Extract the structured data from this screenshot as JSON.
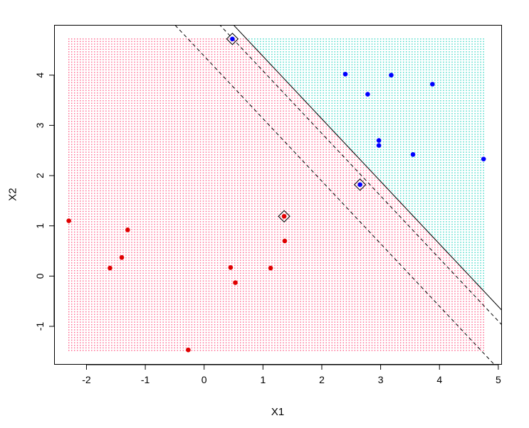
{
  "chart_data": {
    "type": "scatter",
    "title": "",
    "xlabel": "X1",
    "ylabel": "X2",
    "xlim": [
      -2.55,
      5.05
    ],
    "ylim": [
      -1.75,
      5.0
    ],
    "x_ticks": [
      -2,
      -1,
      0,
      1,
      2,
      3,
      4,
      5
    ],
    "y_ticks": [
      -1,
      0,
      1,
      2,
      3,
      4
    ],
    "grid_range": {
      "x": [
        -2.3,
        4.75
      ],
      "y": [
        -1.48,
        4.72
      ]
    },
    "colors": {
      "class_negative_points": "#e00000",
      "class_positive_points": "#0000ff",
      "class_negative_region": "#ff5a85",
      "class_positive_region": "#33d6c3",
      "boundary": "#000000",
      "support_vector_marker": "#000000"
    },
    "decision_boundary": {
      "intercept_at_x0": 5.62,
      "slope": -1.245
    },
    "margin_lower": {
      "intercept_at_x0": 4.38,
      "slope": -1.245
    },
    "margin_upper": {
      "intercept_at_x0": 5.33,
      "slope": -1.245
    },
    "series": [
      {
        "class": "negative",
        "points": [
          [
            -2.3,
            1.1
          ],
          [
            -1.3,
            0.92
          ],
          [
            -1.4,
            0.37
          ],
          [
            -1.6,
            0.16
          ],
          [
            -0.27,
            -1.47
          ],
          [
            0.45,
            0.17
          ],
          [
            0.53,
            -0.13
          ],
          [
            1.13,
            0.16
          ],
          [
            1.36,
            1.19
          ],
          [
            1.37,
            0.7
          ]
        ]
      },
      {
        "class": "positive",
        "points": [
          [
            0.48,
            4.72
          ],
          [
            2.4,
            4.02
          ],
          [
            3.18,
            4.0
          ],
          [
            3.88,
            3.82
          ],
          [
            2.78,
            3.62
          ],
          [
            2.97,
            2.7
          ],
          [
            2.97,
            2.6
          ],
          [
            3.55,
            2.42
          ],
          [
            4.75,
            2.33
          ],
          [
            2.65,
            1.82
          ]
        ]
      }
    ],
    "support_vectors": [
      [
        0.48,
        4.72
      ],
      [
        2.65,
        1.82
      ],
      [
        1.36,
        1.19
      ]
    ]
  }
}
